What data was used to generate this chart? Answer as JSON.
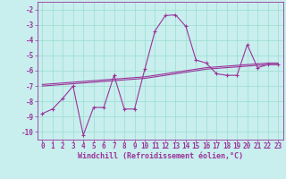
{
  "xlabel": "Windchill (Refroidissement éolien,°C)",
  "background_color": "#c8eeee",
  "grid_color": "#99ddcc",
  "line_color": "#993399",
  "markersize": 3.5,
  "linewidth": 0.8,
  "xlim": [
    -0.5,
    23.5
  ],
  "ylim": [
    -10.5,
    -1.5
  ],
  "xticks": [
    0,
    1,
    2,
    3,
    4,
    5,
    6,
    7,
    8,
    9,
    10,
    11,
    12,
    13,
    14,
    15,
    16,
    17,
    18,
    19,
    20,
    21,
    22,
    23
  ],
  "yticks": [
    -2,
    -3,
    -4,
    -5,
    -6,
    -7,
    -8,
    -9,
    -10
  ],
  "tick_fontsize": 5.5,
  "xlabel_fontsize": 6.0,
  "series1_x": [
    0,
    1,
    2,
    3,
    4,
    5,
    6,
    7,
    8,
    9,
    10,
    11,
    12,
    13,
    14,
    15,
    16,
    17,
    18,
    19,
    20,
    21,
    22,
    23
  ],
  "series1_y": [
    -8.8,
    -8.5,
    -7.8,
    -7.0,
    -10.2,
    -8.4,
    -8.4,
    -6.3,
    -8.5,
    -8.5,
    -5.9,
    -3.4,
    -2.4,
    -2.35,
    -3.1,
    -5.3,
    -5.5,
    -6.2,
    -6.3,
    -6.3,
    -4.3,
    -5.8,
    -5.6,
    -5.6
  ],
  "series2_x": [
    0,
    1,
    2,
    3,
    4,
    5,
    6,
    7,
    8,
    9,
    10,
    11,
    12,
    13,
    14,
    15,
    16,
    17,
    18,
    19,
    20,
    21,
    22,
    23
  ],
  "series2_y": [
    -7.0,
    -6.95,
    -6.9,
    -6.85,
    -6.8,
    -6.75,
    -6.7,
    -6.65,
    -6.6,
    -6.55,
    -6.5,
    -6.4,
    -6.3,
    -6.2,
    -6.1,
    -6.0,
    -5.9,
    -5.85,
    -5.8,
    -5.75,
    -5.7,
    -5.65,
    -5.6,
    -5.6
  ],
  "series3_x": [
    0,
    1,
    2,
    3,
    4,
    5,
    6,
    7,
    8,
    9,
    10,
    11,
    12,
    13,
    14,
    15,
    16,
    17,
    18,
    19,
    20,
    21,
    22,
    23
  ],
  "series3_y": [
    -6.9,
    -6.85,
    -6.8,
    -6.75,
    -6.7,
    -6.65,
    -6.6,
    -6.55,
    -6.5,
    -6.45,
    -6.4,
    -6.3,
    -6.2,
    -6.1,
    -6.0,
    -5.9,
    -5.8,
    -5.75,
    -5.7,
    -5.65,
    -5.6,
    -5.55,
    -5.5,
    -5.5
  ]
}
